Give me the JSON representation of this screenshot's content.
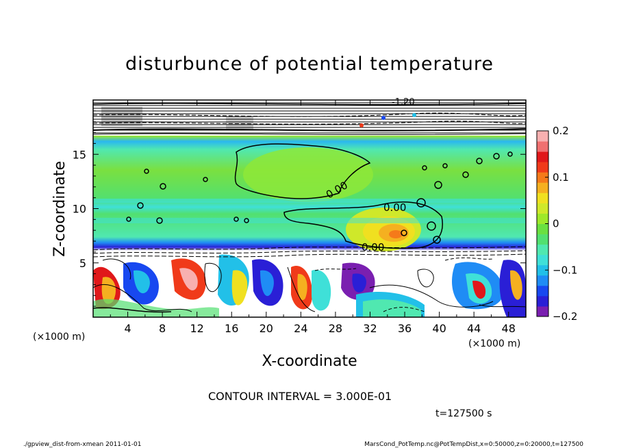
{
  "chart_data": {
    "type": "heatmap",
    "title": "disturbunce of potential temperature",
    "xlabel": "X-coordinate",
    "ylabel": "Z-coordinate",
    "x_unit_left": "(×1000 m)",
    "x_unit_right": "(×1000 m)",
    "xlim": [
      0,
      50
    ],
    "ylim": [
      0,
      20
    ],
    "xticks": [
      4,
      8,
      12,
      16,
      20,
      24,
      28,
      32,
      36,
      40,
      44,
      48
    ],
    "yticks": [
      5,
      10,
      15
    ],
    "colorbar": {
      "range": [
        -0.2,
        0.2
      ],
      "ticks": [
        0.2,
        0.1,
        0,
        -0.1,
        -0.2
      ],
      "tick_labels": [
        "0.2",
        "0.1",
        "0",
        "−0.1",
        "−0.2"
      ],
      "colors": [
        "#7a1fb0",
        "#2a1fd6",
        "#1848f0",
        "#1f8cf5",
        "#22c0e8",
        "#3fe0d8",
        "#50e8b0",
        "#52e070",
        "#6ae040",
        "#9ee82a",
        "#cfe82a",
        "#f0e020",
        "#f5b020",
        "#f57a1a",
        "#f03a1a",
        "#e0181a",
        "#f07070",
        "#f8b0b0"
      ]
    },
    "contour_interval_text": "CONTOUR INTERVAL = 3.000E-01",
    "contour_labels": [
      "0.00",
      "0.00",
      "0.00",
      "-1.20"
    ],
    "time_text": "t=127500 s"
  },
  "footer": {
    "left": "./gpview_dist-from-xmean  2011-01-01",
    "right": "MarsCond_PotTemp.nc@PotTempDist,x=0:50000,z=0:20000,t=127500"
  }
}
